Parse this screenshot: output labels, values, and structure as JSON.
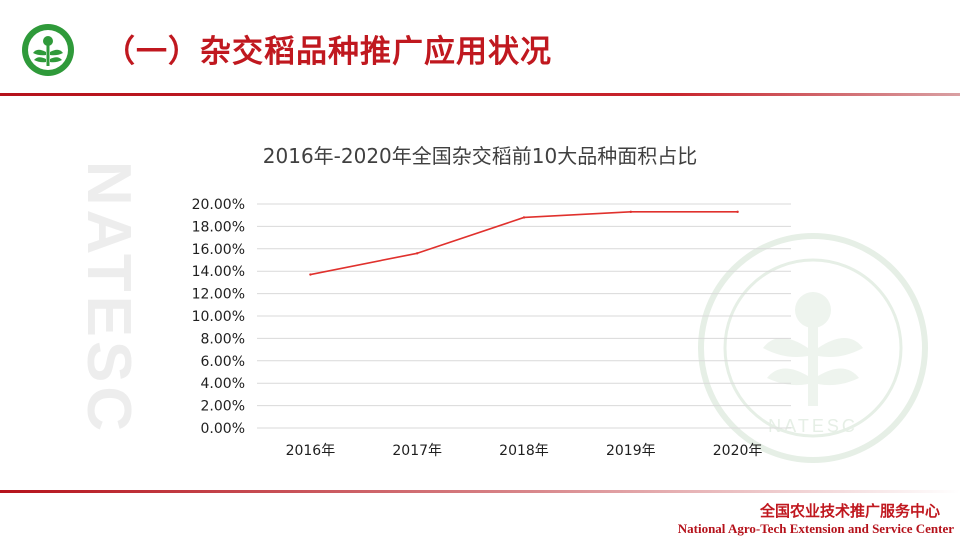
{
  "slide": {
    "title": "（一）杂交稻品种推广应用状况",
    "watermark_text": "NATESC",
    "seal_text": "NATESC",
    "org_name_cn": "全国农业技术推广服务中心",
    "org_name_en": "National Agro-Tech Extension and Service Center"
  },
  "colors": {
    "brand_red": "#c0181f",
    "logo_green": "#2f9a3a",
    "series_line": "#e0312d",
    "grid": "#d9d9d9"
  },
  "chart_data": {
    "type": "line",
    "title": "2016年-2020年全国杂交稻前10大品种面积占比",
    "xlabel": "",
    "ylabel": "",
    "categories": [
      "2016年",
      "2017年",
      "2018年",
      "2019年",
      "2020年"
    ],
    "series": [
      {
        "values": [
          13.7,
          15.6,
          18.8,
          19.3,
          19.3
        ]
      }
    ],
    "ylim": [
      0,
      20
    ],
    "ytick_step": 2,
    "ytick_labels": [
      "0.00%",
      "2.00%",
      "4.00%",
      "6.00%",
      "8.00%",
      "10.00%",
      "12.00%",
      "14.00%",
      "16.00%",
      "18.00%",
      "20.00%"
    ],
    "grid": true,
    "legend": "none"
  }
}
